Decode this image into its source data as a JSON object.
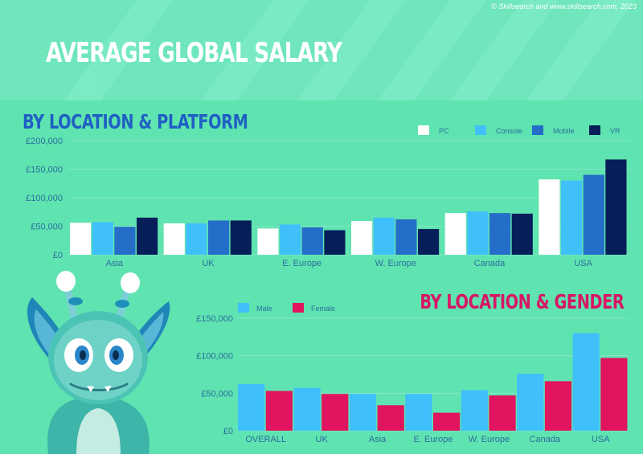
{
  "header": {
    "credit": "© Skillsearch and www.skillsearch.com, 2023",
    "title": "AVERAGE GLOBAL SALARY"
  },
  "chart_data": [
    {
      "type": "bar",
      "title": "BY LOCATION & PLATFORM",
      "categories": [
        "Asia",
        "UK",
        "E. Europe",
        "W. Europe",
        "Canada",
        "USA"
      ],
      "series": [
        {
          "name": "PC",
          "color": "#ffffff",
          "values": [
            56000,
            55000,
            46000,
            59000,
            73000,
            132000
          ]
        },
        {
          "name": "Console",
          "color": "#3fc0fb",
          "values": [
            57000,
            55000,
            53000,
            65000,
            76000,
            130000
          ]
        },
        {
          "name": "Mobile",
          "color": "#246ec9",
          "values": [
            49000,
            60000,
            48000,
            62000,
            73000,
            140000
          ]
        },
        {
          "name": "VR",
          "color": "#061e5a",
          "values": [
            65000,
            60000,
            43000,
            45000,
            72000,
            167000
          ]
        }
      ],
      "ylim": [
        0,
        200000
      ],
      "yticks": [
        0,
        50000,
        100000,
        150000,
        200000
      ],
      "ytick_labels": [
        "£0",
        "£50,000",
        "£100,000",
        "£150,000",
        "£200,000"
      ],
      "grid": true,
      "legend": "top-right"
    },
    {
      "type": "bar",
      "title": "BY LOCATION & GENDER",
      "categories": [
        "OVERALL",
        "UK",
        "Asia",
        "E. Europe",
        "W. Europe",
        "Canada",
        "USA"
      ],
      "series": [
        {
          "name": "Male",
          "color": "#3fc0fb",
          "values": [
            62000,
            57000,
            49000,
            49000,
            54000,
            76000,
            130000
          ]
        },
        {
          "name": "Female",
          "color": "#e0145f",
          "values": [
            53000,
            49000,
            34000,
            24000,
            47000,
            66000,
            97000
          ]
        }
      ],
      "ylim": [
        0,
        150000
      ],
      "yticks": [
        0,
        50000,
        100000,
        150000
      ],
      "ytick_labels": [
        "£0",
        "£50,000",
        "£100,000",
        "£150,000"
      ],
      "grid": true,
      "legend": "top-left"
    }
  ],
  "colors": {
    "background": "#5fe3b0",
    "axis_text": "#2b6f9e",
    "title_platform": "#1f60c4",
    "title_gender": "#d81565"
  },
  "mascot": {
    "icon": "alien-mascot-illustration"
  }
}
